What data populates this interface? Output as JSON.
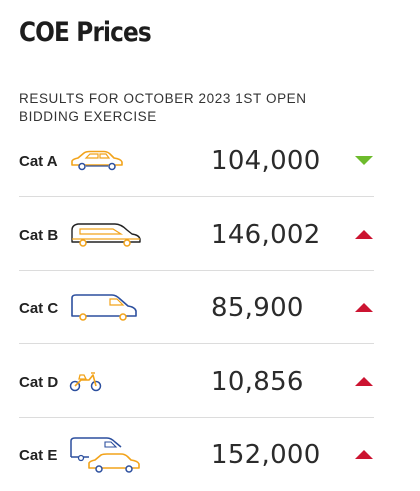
{
  "header": {
    "title": "COE Prices",
    "subtitle": "RESULTS FOR OCTOBER 2023 1ST OPEN BIDDING EXERCISE"
  },
  "categories": [
    {
      "label": "Cat A",
      "price": "104,000",
      "trend": "down",
      "vehicle_icon": "car-icon"
    },
    {
      "label": "Cat B",
      "price": "146,002",
      "trend": "up",
      "vehicle_icon": "large-car-icon"
    },
    {
      "label": "Cat C",
      "price": "85,900",
      "trend": "up",
      "vehicle_icon": "van-icon"
    },
    {
      "label": "Cat D",
      "price": "10,856",
      "trend": "up",
      "vehicle_icon": "motorcycle-icon"
    },
    {
      "label": "Cat E",
      "price": "152,000",
      "trend": "up",
      "vehicle_icon": "van-and-car-icon"
    }
  ],
  "colors": {
    "up": "#cc1431",
    "down": "#6dbb2c",
    "icon_orange": "#f2a31a",
    "icon_blue": "#2c4f9e"
  }
}
